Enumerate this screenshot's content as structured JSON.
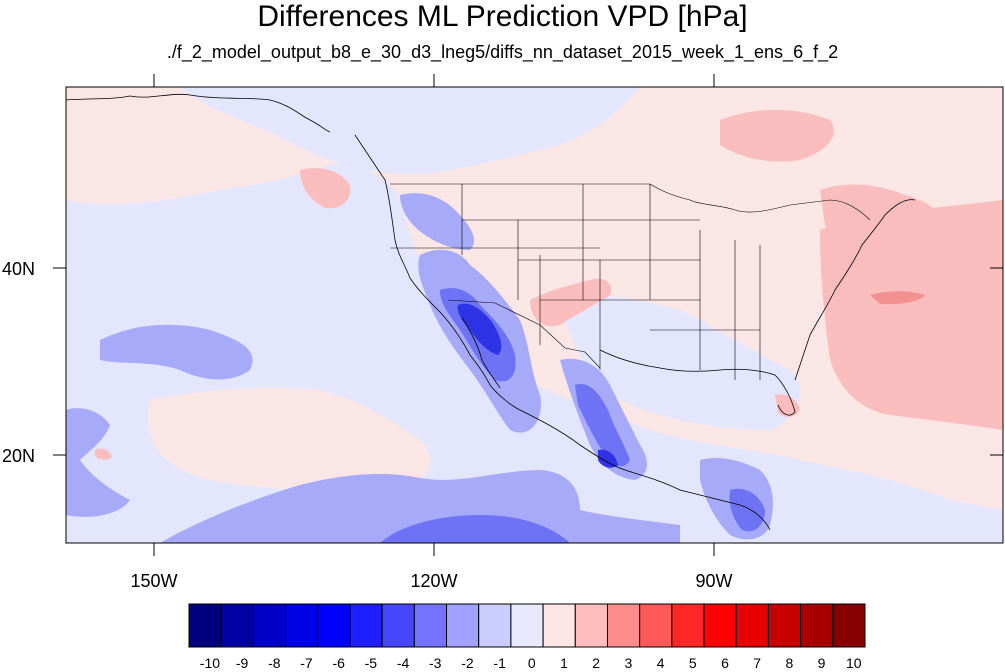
{
  "title": "Differences ML Prediction VPD [hPa]",
  "subtitle": "./f_2_model_output_b8_e_30_d3_lneg5/diffs_nn_dataset_2015_week_1_ens_6_f_2",
  "axes": {
    "x_ticks": [
      "150W",
      "120W",
      "90W"
    ],
    "y_ticks": [
      "40N",
      "20N"
    ]
  },
  "colorbar": {
    "labels": [
      "-10",
      "-9",
      "-8",
      "-7",
      "-6",
      "-5",
      "-4",
      "-3",
      "-2",
      "-1",
      "0",
      "1",
      "2",
      "3",
      "4",
      "5",
      "6",
      "7",
      "8",
      "9",
      "10"
    ],
    "colors": [
      "#00007f",
      "#0000a3",
      "#0000c6",
      "#0000e6",
      "#0000ff",
      "#1e1eff",
      "#4646ff",
      "#7373ff",
      "#a1a1ff",
      "#cccdff",
      "#e8e9fe",
      "#fde5e5",
      "#ffbdbd",
      "#fe8c8c",
      "#ff5959",
      "#ff2626",
      "#ff0000",
      "#e60000",
      "#c60000",
      "#a80000",
      "#870000"
    ]
  },
  "colors": {
    "background_ocean": "#fbe6e6",
    "land_base": "#fce7e7",
    "light_blue": "#e6e8fd",
    "mid_blue": "#a5a7fa",
    "blue": "#6f73f5",
    "deep_blue": "#3337e8",
    "light_red": "#f9bdbd",
    "red": "#f28f8f"
  }
}
